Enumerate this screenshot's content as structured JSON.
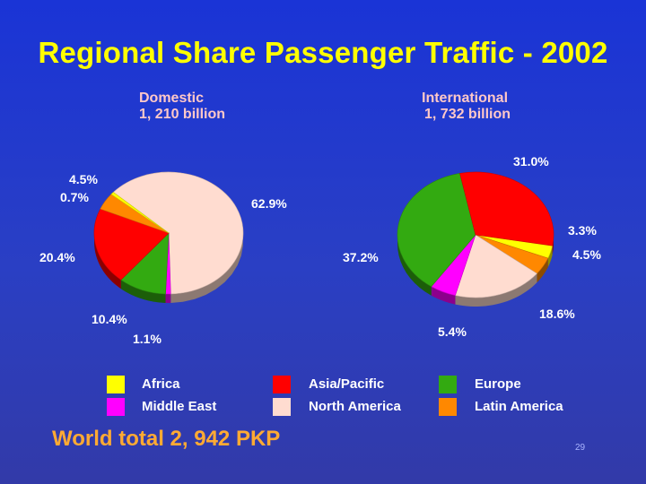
{
  "title": "Regional Share Passenger Traffic - 2002",
  "footer": "World total 2, 942 PKP",
  "page_number": "29",
  "colors": {
    "africa": "#ffff00",
    "asia_pacific": "#ff0000",
    "europe": "#33aa11",
    "middle_east": "#ff00ff",
    "north_america": "#ffdcd0",
    "latin_america": "#ff8800"
  },
  "legend": [
    {
      "key": "africa",
      "label": "Africa"
    },
    {
      "key": "asia_pacific",
      "label": "Asia/Pacific"
    },
    {
      "key": "europe",
      "label": "Europe"
    },
    {
      "key": "middle_east",
      "label": "Middle East"
    },
    {
      "key": "north_america",
      "label": "North America"
    },
    {
      "key": "latin_america",
      "label": "Latin America"
    }
  ],
  "chart_data": [
    {
      "type": "pie",
      "title_line1": "Domestic",
      "title_line2": "1, 210 billion",
      "slices": [
        {
          "key": "north_america",
          "value": 62.9,
          "label": "62.9%"
        },
        {
          "key": "middle_east",
          "value": 1.1,
          "label": "1.1%"
        },
        {
          "key": "europe",
          "value": 10.4,
          "label": "10.4%"
        },
        {
          "key": "asia_pacific",
          "value": 20.4,
          "label": "20.4%"
        },
        {
          "key": "latin_america",
          "value": 4.5,
          "label": "4.5%"
        },
        {
          "key": "africa",
          "value": 0.7,
          "label": "0.7%"
        }
      ]
    },
    {
      "type": "pie",
      "title_line1": "International",
      "title_line2": "1, 732 billion",
      "slices": [
        {
          "key": "africa",
          "value": 3.3,
          "label": "3.3%"
        },
        {
          "key": "latin_america",
          "value": 4.5,
          "label": "4.5%"
        },
        {
          "key": "north_america",
          "value": 18.6,
          "label": "18.6%"
        },
        {
          "key": "middle_east",
          "value": 5.4,
          "label": "5.4%"
        },
        {
          "key": "europe",
          "value": 37.2,
          "label": "37.2%"
        },
        {
          "key": "asia_pacific",
          "value": 31.0,
          "label": "31.0%"
        }
      ]
    }
  ]
}
